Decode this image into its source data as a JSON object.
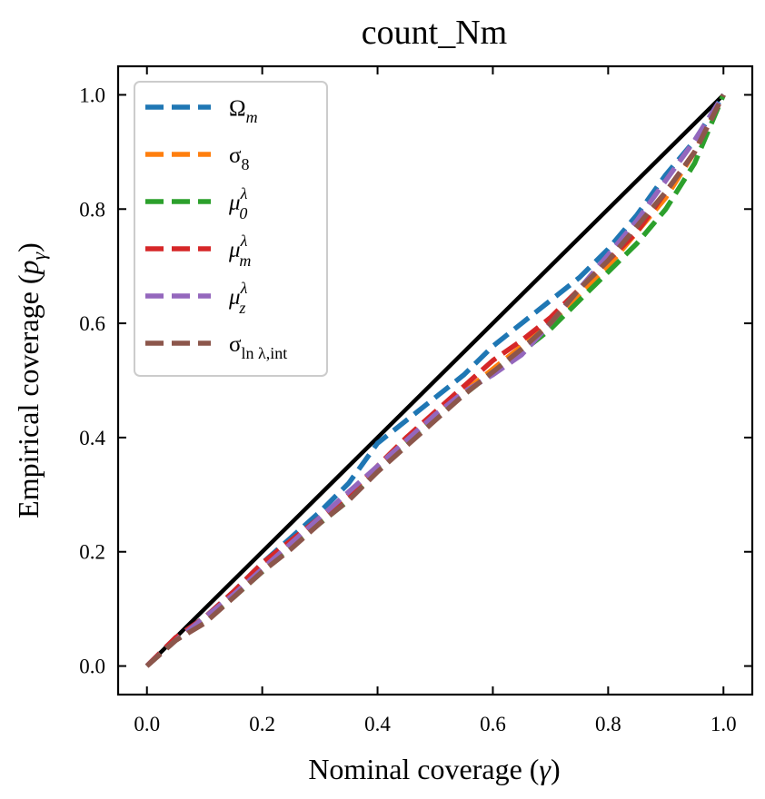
{
  "chart_data": {
    "type": "line",
    "title": "count_Nm",
    "xlabel": "Nominal coverage (γ)",
    "ylabel": "Empirical coverage (p_γ)",
    "xlim": [
      -0.05,
      1.05
    ],
    "ylim": [
      -0.05,
      1.05
    ],
    "xticks": [
      "0.0",
      "0.2",
      "0.4",
      "0.6",
      "0.8",
      "1.0"
    ],
    "yticks": [
      "0.0",
      "0.2",
      "0.4",
      "0.6",
      "0.8",
      "1.0"
    ],
    "grid": false,
    "legend_position": "upper-left",
    "reference_line": {
      "x": [
        0,
        1
      ],
      "y": [
        0,
        1
      ],
      "color": "#000000"
    },
    "x": [
      0.0,
      0.05,
      0.1,
      0.15,
      0.2,
      0.25,
      0.3,
      0.35,
      0.4,
      0.45,
      0.5,
      0.55,
      0.6,
      0.65,
      0.7,
      0.75,
      0.8,
      0.85,
      0.9,
      0.95,
      1.0
    ],
    "series": [
      {
        "name": "Ω_m",
        "color": "#1f77b4",
        "values": [
          0.0,
          0.05,
          0.085,
          0.13,
          0.18,
          0.225,
          0.27,
          0.32,
          0.39,
          0.43,
          0.47,
          0.51,
          0.56,
          0.6,
          0.64,
          0.68,
          0.73,
          0.79,
          0.86,
          0.92,
          1.0
        ]
      },
      {
        "name": "σ_8",
        "color": "#ff7f0e",
        "values": [
          0.0,
          0.045,
          0.08,
          0.125,
          0.17,
          0.215,
          0.255,
          0.3,
          0.35,
          0.4,
          0.44,
          0.48,
          0.52,
          0.56,
          0.6,
          0.65,
          0.7,
          0.76,
          0.82,
          0.9,
          1.0
        ]
      },
      {
        "name": "μ_0^λ",
        "color": "#2ca02c",
        "values": [
          0.0,
          0.045,
          0.08,
          0.12,
          0.165,
          0.21,
          0.25,
          0.29,
          0.345,
          0.39,
          0.435,
          0.475,
          0.515,
          0.55,
          0.59,
          0.64,
          0.69,
          0.74,
          0.8,
          0.88,
          1.0
        ]
      },
      {
        "name": "μ_m^λ",
        "color": "#d62728",
        "values": [
          0.0,
          0.05,
          0.085,
          0.13,
          0.18,
          0.22,
          0.26,
          0.3,
          0.35,
          0.4,
          0.445,
          0.49,
          0.535,
          0.57,
          0.61,
          0.66,
          0.71,
          0.76,
          0.83,
          0.9,
          1.0
        ]
      },
      {
        "name": "μ_z^λ",
        "color": "#9467bd",
        "values": [
          0.0,
          0.045,
          0.085,
          0.125,
          0.17,
          0.215,
          0.26,
          0.305,
          0.35,
          0.395,
          0.44,
          0.48,
          0.51,
          0.545,
          0.6,
          0.66,
          0.72,
          0.78,
          0.85,
          0.92,
          1.0
        ]
      },
      {
        "name": "σ_{ln λ,int}",
        "color": "#8c564b",
        "values": [
          0.0,
          0.045,
          0.075,
          0.12,
          0.165,
          0.205,
          0.25,
          0.29,
          0.34,
          0.385,
          0.43,
          0.475,
          0.515,
          0.555,
          0.6,
          0.66,
          0.71,
          0.77,
          0.83,
          0.9,
          1.0
        ]
      }
    ]
  }
}
